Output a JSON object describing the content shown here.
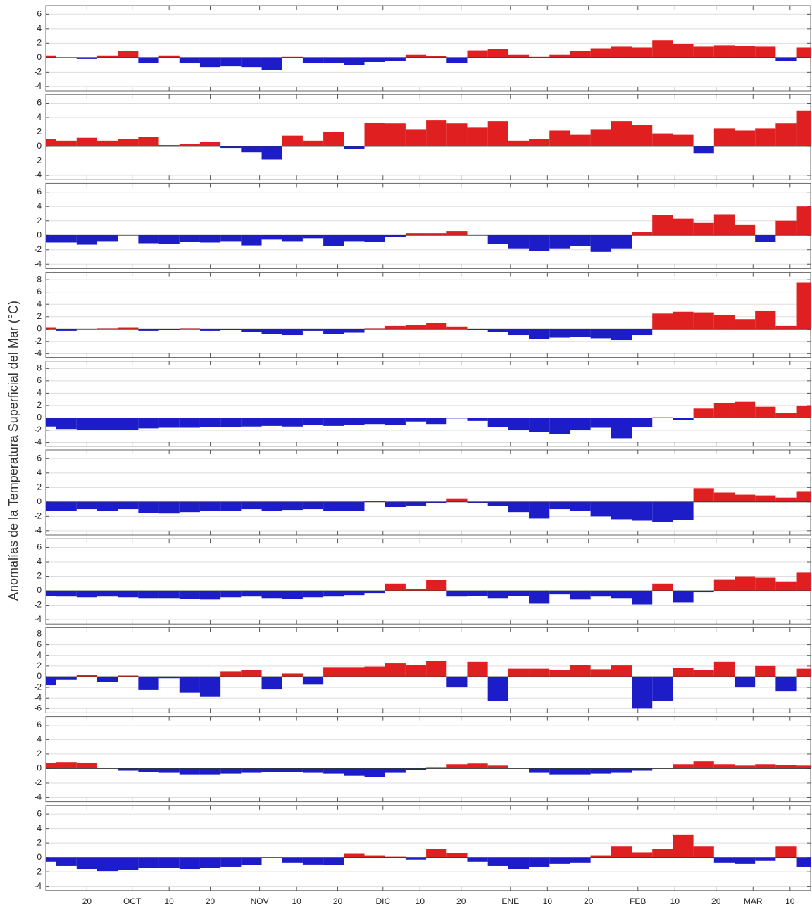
{
  "y_label": "Anomalías de la Temperatura Superficial del Mar (°C)",
  "chart_data": [
    {
      "type": "bar",
      "pos_color": "#e02020",
      "neg_color": "#1c1cc8",
      "grid": true,
      "ylim": [
        -4.6,
        7.2
      ],
      "yticks": [
        -4,
        -2,
        0,
        2,
        4,
        6
      ],
      "xlim": [
        0,
        186
      ],
      "x": [
        0,
        5,
        10,
        15,
        20,
        25,
        30,
        35,
        40,
        45,
        50,
        55,
        60,
        65,
        70,
        75,
        80,
        85,
        90,
        95,
        100,
        105,
        110,
        115,
        120,
        125,
        130,
        135,
        140,
        145,
        150,
        155,
        160,
        165,
        170,
        175,
        180,
        185
      ],
      "values": [
        0.3,
        0,
        -0.2,
        0.3,
        0.9,
        -0.8,
        0.3,
        -0.8,
        -1.3,
        -1.2,
        -1.3,
        -1.7,
        0.1,
        -0.8,
        -0.8,
        -1.0,
        -0.6,
        -0.5,
        0.4,
        0.2,
        -0.8,
        1.0,
        1.2,
        0.4,
        0.1,
        0.4,
        0.9,
        1.3,
        1.5,
        1.4,
        2.4,
        1.9,
        1.5,
        1.7,
        1.6,
        1.5,
        -0.5,
        1.4
      ]
    },
    {
      "type": "bar",
      "pos_color": "#e02020",
      "neg_color": "#1c1cc8",
      "grid": true,
      "ylim": [
        -4.6,
        7.2
      ],
      "yticks": [
        -4,
        -2,
        0,
        2,
        4,
        6
      ],
      "xlim": [
        0,
        186
      ],
      "x": [
        0,
        5,
        10,
        15,
        20,
        25,
        30,
        35,
        40,
        45,
        50,
        55,
        60,
        65,
        70,
        75,
        80,
        85,
        90,
        95,
        100,
        105,
        110,
        115,
        120,
        125,
        130,
        135,
        140,
        145,
        150,
        155,
        160,
        165,
        170,
        175,
        180,
        185
      ],
      "values": [
        1.0,
        0.8,
        1.2,
        0.8,
        1.0,
        1.3,
        0.2,
        0.3,
        0.6,
        -0.2,
        -0.8,
        -1.8,
        1.5,
        0.8,
        2.0,
        -0.3,
        3.3,
        3.2,
        2.4,
        3.6,
        3.2,
        2.6,
        3.5,
        0.8,
        1.0,
        2.2,
        1.6,
        2.4,
        3.5,
        3.0,
        1.8,
        1.6,
        -0.9,
        2.5,
        2.2,
        2.5,
        3.2,
        5.0
      ]
    },
    {
      "type": "bar",
      "pos_color": "#e02020",
      "neg_color": "#1c1cc8",
      "grid": true,
      "ylim": [
        -4.6,
        7.2
      ],
      "yticks": [
        -4,
        -2,
        0,
        2,
        4,
        6
      ],
      "xlim": [
        0,
        186
      ],
      "x": [
        0,
        5,
        10,
        15,
        20,
        25,
        30,
        35,
        40,
        45,
        50,
        55,
        60,
        65,
        70,
        75,
        80,
        85,
        90,
        95,
        100,
        105,
        110,
        115,
        120,
        125,
        130,
        135,
        140,
        145,
        150,
        155,
        160,
        165,
        170,
        175,
        180,
        185
      ],
      "values": [
        -1.0,
        -1.0,
        -1.3,
        -0.8,
        0,
        -1.1,
        -1.2,
        -0.9,
        -1.0,
        -0.8,
        -1.4,
        -0.6,
        -0.8,
        -0.4,
        -1.5,
        -0.8,
        -0.9,
        -0.2,
        0.3,
        0.3,
        0.6,
        0,
        -1.2,
        -1.8,
        -2.2,
        -1.8,
        -1.5,
        -2.3,
        -1.8,
        0.5,
        2.8,
        2.3,
        1.8,
        2.9,
        1.5,
        -0.9,
        2.0,
        4.0
      ]
    },
    {
      "type": "bar",
      "pos_color": "#e02020",
      "neg_color": "#1c1cc8",
      "grid": true,
      "ylim": [
        -4.6,
        9.2
      ],
      "yticks": [
        -4,
        -2,
        0,
        2,
        4,
        6,
        8
      ],
      "xlim": [
        0,
        186
      ],
      "x": [
        0,
        5,
        10,
        15,
        20,
        25,
        30,
        35,
        40,
        45,
        50,
        55,
        60,
        65,
        70,
        75,
        80,
        85,
        90,
        95,
        100,
        105,
        110,
        115,
        120,
        125,
        130,
        135,
        140,
        145,
        150,
        155,
        160,
        165,
        170,
        175,
        180,
        185
      ],
      "values": [
        0.2,
        -0.3,
        0,
        0.1,
        0.2,
        -0.3,
        -0.2,
        0.1,
        -0.3,
        -0.2,
        -0.5,
        -0.8,
        -1.0,
        -0.3,
        -0.8,
        -0.6,
        0.1,
        0.5,
        0.7,
        1.0,
        0.4,
        -0.2,
        -0.5,
        -1.0,
        -1.6,
        -1.4,
        -1.3,
        -1.5,
        -1.8,
        -1.0,
        2.5,
        2.8,
        2.7,
        2.2,
        1.6,
        3.0,
        0.5,
        7.5
      ]
    },
    {
      "type": "bar",
      "pos_color": "#e02020",
      "neg_color": "#1c1cc8",
      "grid": true,
      "ylim": [
        -4.6,
        9.2
      ],
      "yticks": [
        -4,
        -2,
        0,
        2,
        4,
        6,
        8
      ],
      "xlim": [
        0,
        186
      ],
      "x": [
        0,
        5,
        10,
        15,
        20,
        25,
        30,
        35,
        40,
        45,
        50,
        55,
        60,
        65,
        70,
        75,
        80,
        85,
        90,
        95,
        100,
        105,
        110,
        115,
        120,
        125,
        130,
        135,
        140,
        145,
        150,
        155,
        160,
        165,
        170,
        175,
        180,
        185
      ],
      "values": [
        -1.4,
        -1.8,
        -2.0,
        -2.0,
        -1.9,
        -1.7,
        -1.6,
        -1.6,
        -1.5,
        -1.5,
        -1.4,
        -1.3,
        -1.4,
        -1.2,
        -1.3,
        -1.2,
        -1.0,
        -1.2,
        -0.6,
        -1.0,
        -0.1,
        -0.5,
        -1.5,
        -2.0,
        -2.3,
        -2.6,
        -2.0,
        -1.6,
        -3.3,
        -1.5,
        0.1,
        -0.4,
        1.5,
        2.4,
        2.6,
        1.8,
        0.8,
        2.0
      ]
    },
    {
      "type": "bar",
      "pos_color": "#e02020",
      "neg_color": "#1c1cc8",
      "grid": true,
      "ylim": [
        -4.6,
        7.2
      ],
      "yticks": [
        -4,
        -2,
        0,
        2,
        4,
        6
      ],
      "xlim": [
        0,
        186
      ],
      "x": [
        0,
        5,
        10,
        15,
        20,
        25,
        30,
        35,
        40,
        45,
        50,
        55,
        60,
        65,
        70,
        75,
        80,
        85,
        90,
        95,
        100,
        105,
        110,
        115,
        120,
        125,
        130,
        135,
        140,
        145,
        150,
        155,
        160,
        165,
        170,
        175,
        180,
        185
      ],
      "values": [
        -1.2,
        -1.2,
        -1.0,
        -1.2,
        -1.0,
        -1.5,
        -1.6,
        -1.4,
        -1.2,
        -1.2,
        -1.0,
        -1.2,
        -1.1,
        -1.0,
        -1.2,
        -1.2,
        0.1,
        -0.7,
        -0.5,
        -0.2,
        0.5,
        -0.2,
        -0.6,
        -1.4,
        -2.3,
        -1.0,
        -1.2,
        -2.0,
        -2.4,
        -2.6,
        -2.8,
        -2.5,
        1.9,
        1.3,
        1.0,
        0.9,
        0.6,
        1.5
      ]
    },
    {
      "type": "bar",
      "pos_color": "#e02020",
      "neg_color": "#1c1cc8",
      "grid": true,
      "ylim": [
        -4.6,
        7.2
      ],
      "yticks": [
        -4,
        -2,
        0,
        2,
        4,
        6
      ],
      "xlim": [
        0,
        186
      ],
      "x": [
        0,
        5,
        10,
        15,
        20,
        25,
        30,
        35,
        40,
        45,
        50,
        55,
        60,
        65,
        70,
        75,
        80,
        85,
        90,
        95,
        100,
        105,
        110,
        115,
        120,
        125,
        130,
        135,
        140,
        145,
        150,
        155,
        160,
        165,
        170,
        175,
        180,
        185
      ],
      "values": [
        -0.7,
        -0.8,
        -0.9,
        -0.8,
        -0.9,
        -1.0,
        -1.0,
        -1.1,
        -1.2,
        -0.9,
        -0.8,
        -1.0,
        -1.1,
        -0.9,
        -0.8,
        -0.6,
        -0.3,
        1.0,
        0.3,
        1.5,
        -0.8,
        -0.7,
        -1.0,
        -0.7,
        -1.8,
        -0.5,
        -1.2,
        -0.8,
        -1.0,
        -1.9,
        1.0,
        -1.6,
        -0.2,
        1.6,
        2.0,
        1.8,
        1.3,
        2.5
      ]
    },
    {
      "type": "bar",
      "pos_color": "#e02020",
      "neg_color": "#1c1cc8",
      "grid": true,
      "ylim": [
        -6.8,
        9.2
      ],
      "yticks": [
        -6,
        -4,
        -2,
        0,
        2,
        4,
        6,
        8
      ],
      "xlim": [
        0,
        186
      ],
      "x": [
        0,
        5,
        10,
        15,
        20,
        25,
        30,
        35,
        40,
        45,
        50,
        55,
        60,
        65,
        70,
        75,
        80,
        85,
        90,
        95,
        100,
        105,
        110,
        115,
        120,
        125,
        130,
        135,
        140,
        145,
        150,
        155,
        160,
        165,
        170,
        175,
        180,
        185
      ],
      "values": [
        -1.6,
        -0.5,
        0.3,
        -1.0,
        0.2,
        -2.5,
        -0.3,
        -3.0,
        -3.8,
        1.0,
        1.2,
        -2.4,
        0.6,
        -1.5,
        1.8,
        1.8,
        1.9,
        2.5,
        2.2,
        3.0,
        -2.0,
        2.8,
        -4.5,
        1.5,
        1.5,
        1.2,
        2.2,
        1.4,
        2.1,
        -6.0,
        -4.5,
        1.6,
        1.2,
        2.8,
        -2.0,
        2.0,
        -2.8,
        1.5
      ]
    },
    {
      "type": "bar",
      "pos_color": "#e02020",
      "neg_color": "#1c1cc8",
      "grid": true,
      "ylim": [
        -4.6,
        7.2
      ],
      "yticks": [
        -4,
        -2,
        0,
        2,
        4,
        6
      ],
      "xlim": [
        0,
        186
      ],
      "x": [
        0,
        5,
        10,
        15,
        20,
        25,
        30,
        35,
        40,
        45,
        50,
        55,
        60,
        65,
        70,
        75,
        80,
        85,
        90,
        95,
        100,
        105,
        110,
        115,
        120,
        125,
        130,
        135,
        140,
        145,
        150,
        155,
        160,
        165,
        170,
        175,
        180,
        185
      ],
      "values": [
        0.8,
        0.9,
        0.8,
        0.1,
        -0.3,
        -0.5,
        -0.6,
        -0.8,
        -0.8,
        -0.7,
        -0.6,
        -0.5,
        -0.5,
        -0.6,
        -0.7,
        -1.0,
        -1.2,
        -0.6,
        -0.2,
        0.2,
        0.6,
        0.7,
        0.4,
        0.0,
        -0.6,
        -0.8,
        -0.8,
        -0.7,
        -0.6,
        -0.3,
        0.0,
        0.6,
        1.0,
        0.6,
        0.4,
        0.6,
        0.5,
        0.4
      ]
    },
    {
      "type": "bar",
      "pos_color": "#e02020",
      "neg_color": "#1c1cc8",
      "grid": true,
      "ylim": [
        -4.6,
        7.2
      ],
      "yticks": [
        -4,
        -2,
        0,
        2,
        4,
        6
      ],
      "xlim": [
        0,
        186
      ],
      "x": [
        0,
        5,
        10,
        15,
        20,
        25,
        30,
        35,
        40,
        45,
        50,
        55,
        60,
        65,
        70,
        75,
        80,
        85,
        90,
        95,
        100,
        105,
        110,
        115,
        120,
        125,
        130,
        135,
        140,
        145,
        150,
        155,
        160,
        165,
        170,
        175,
        180,
        185
      ],
      "values": [
        -0.6,
        -1.2,
        -1.6,
        -1.9,
        -1.7,
        -1.5,
        -1.4,
        -1.6,
        -1.5,
        -1.3,
        -1.1,
        -0.1,
        -0.7,
        -1.0,
        -1.1,
        0.5,
        0.3,
        0.1,
        -0.3,
        1.2,
        0.6,
        -0.6,
        -1.2,
        -1.6,
        -1.3,
        -0.9,
        -0.7,
        0.3,
        1.5,
        0.7,
        1.2,
        3.1,
        1.5,
        -0.7,
        -0.9,
        -0.5,
        1.5,
        -1.3
      ],
      "xticks": [
        {
          "value": 10,
          "label": "20"
        },
        {
          "value": 21,
          "label": "OCT"
        },
        {
          "value": 30,
          "label": "10"
        },
        {
          "value": 40,
          "label": "20"
        },
        {
          "value": 52,
          "label": "NOV"
        },
        {
          "value": 61,
          "label": "10"
        },
        {
          "value": 71,
          "label": "20"
        },
        {
          "value": 82,
          "label": "DIC"
        },
        {
          "value": 91,
          "label": "10"
        },
        {
          "value": 101,
          "label": "20"
        },
        {
          "value": 113,
          "label": "ENE"
        },
        {
          "value": 122,
          "label": "10"
        },
        {
          "value": 132,
          "label": "20"
        },
        {
          "value": 144,
          "label": "FEB"
        },
        {
          "value": 153,
          "label": "10"
        },
        {
          "value": 163,
          "label": "20"
        },
        {
          "value": 172,
          "label": "MAR"
        },
        {
          "value": 181,
          "label": "10"
        }
      ]
    }
  ]
}
